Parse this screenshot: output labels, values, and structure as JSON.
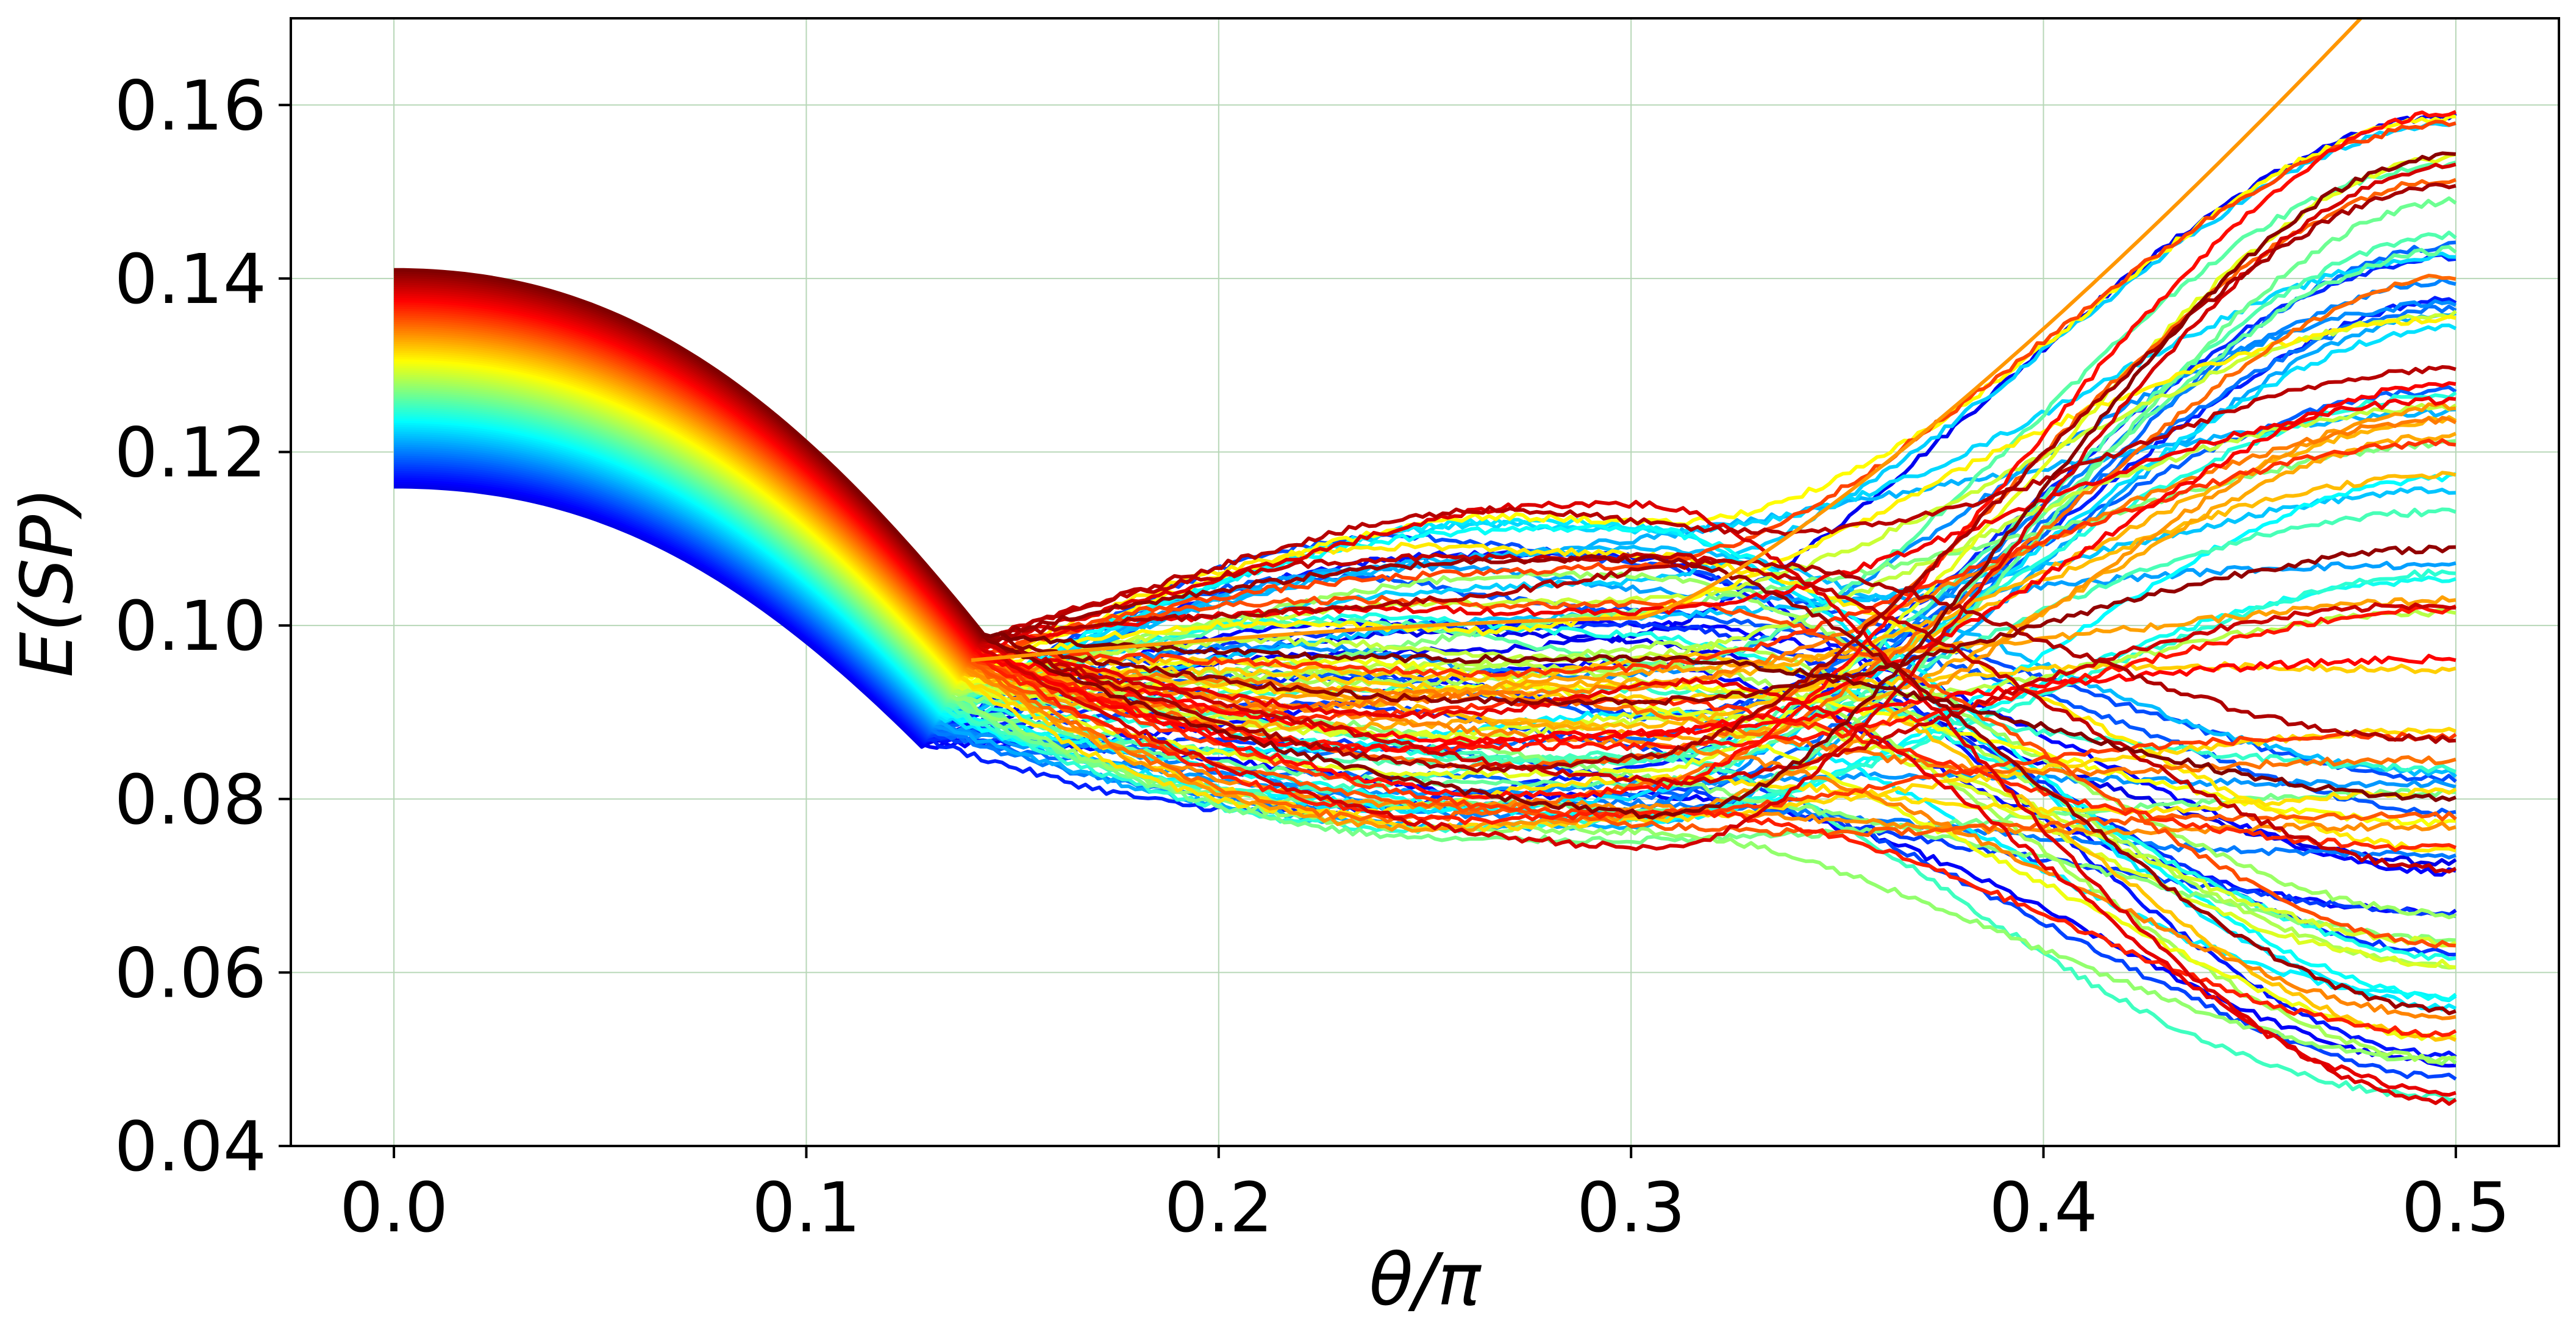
{
  "chart_data": {
    "type": "line",
    "title": "",
    "xlabel": "θ/π",
    "ylabel": "E(SP)",
    "xlim": [
      -0.025,
      0.525
    ],
    "ylim": [
      0.04,
      0.17
    ],
    "xticks": [
      0.0,
      0.1,
      0.2,
      0.3,
      0.4,
      0.5
    ],
    "xtick_labels": [
      "0.0",
      "0.1",
      "0.2",
      "0.3",
      "0.4",
      "0.5"
    ],
    "yticks": [
      0.04,
      0.06,
      0.08,
      0.1,
      0.12,
      0.14,
      0.16
    ],
    "ytick_labels": [
      "0.04",
      "0.06",
      "0.08",
      "0.10",
      "0.12",
      "0.14",
      "0.16"
    ],
    "grid": true,
    "legend": "none",
    "colormap": "jet",
    "series_count": 100,
    "x_range": [
      0.0,
      0.5
    ],
    "start_value_range": [
      0.116,
      0.141
    ],
    "kink_position_range": [
      0.128,
      0.143
    ],
    "kink_value_range": [
      0.086,
      0.099
    ],
    "end_value_range": [
      0.045,
      0.17
    ],
    "grid_color": "#b7d7b7",
    "axis_color": "#000000",
    "background": "#ffffff"
  }
}
